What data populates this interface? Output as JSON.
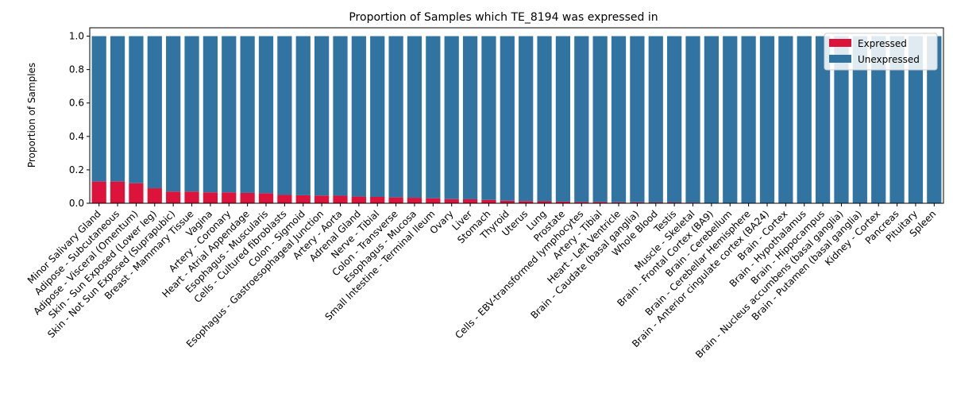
{
  "chart_data": {
    "type": "bar",
    "stacked": true,
    "title": "Proportion of Samples which TE_8194 was expressed in",
    "xlabel": "",
    "ylabel": "Proportion of Samples",
    "ylim": [
      0,
      1.05
    ],
    "yticks": [
      "0.0",
      "0.2",
      "0.4",
      "0.6",
      "0.8",
      "1.0"
    ],
    "legend_position": "top-right",
    "grid": false,
    "colors": {
      "Expressed": "#dc143c",
      "Unexpressed": "#3274a1"
    },
    "categories": [
      "Minor Salivary Gland",
      "Adipose - Subcutaneous",
      "Adipose - Visceral (Omentum)",
      "Skin - Sun Exposed (Lower leg)",
      "Skin - Not Sun Exposed (Suprapubic)",
      "Breast - Mammary Tissue",
      "Vagina",
      "Artery - Coronary",
      "Heart - Atrial Appendage",
      "Esophagus - Muscularis",
      "Cells - Cultured fibroblasts",
      "Colon - Sigmoid",
      "Esophagus - Gastroesophageal Junction",
      "Artery - Aorta",
      "Adrenal Gland",
      "Nerve - Tibial",
      "Colon - Transverse",
      "Esophagus - Mucosa",
      "Small Intestine - Terminal Ileum",
      "Ovary",
      "Liver",
      "Stomach",
      "Thyroid",
      "Uterus",
      "Lung",
      "Prostate",
      "Cells - EBV-transformed lymphocytes",
      "Artery - Tibial",
      "Heart - Left Ventricle",
      "Brain - Caudate (basal ganglia)",
      "Whole Blood",
      "Testis",
      "Muscle - Skeletal",
      "Brain - Frontal Cortex (BA9)",
      "Brain - Cerebellum",
      "Brain - Cerebellar Hemisphere",
      "Brain - Anterior cingulate cortex (BA24)",
      "Brain - Cortex",
      "Brain - Hypothalamus",
      "Brain - Hippocampus",
      "Brain - Nucleus accumbens (basal ganglia)",
      "Brain - Putamen (basal ganglia)",
      "Kidney - Cortex",
      "Pancreas",
      "Pituitary",
      "Spleen"
    ],
    "series": [
      {
        "name": "Expressed",
        "values": [
          0.13,
          0.13,
          0.12,
          0.09,
          0.07,
          0.07,
          0.065,
          0.065,
          0.062,
          0.06,
          0.05,
          0.048,
          0.046,
          0.045,
          0.04,
          0.038,
          0.035,
          0.033,
          0.03,
          0.025,
          0.024,
          0.02,
          0.015,
          0.013,
          0.012,
          0.01,
          0.008,
          0.008,
          0.006,
          0.006,
          0.005,
          0.005,
          0.004,
          0,
          0,
          0,
          0,
          0,
          0,
          0,
          0,
          0,
          0,
          0,
          0,
          0
        ]
      },
      {
        "name": "Unexpressed",
        "values": [
          0.87,
          0.87,
          0.88,
          0.91,
          0.93,
          0.93,
          0.935,
          0.935,
          0.938,
          0.94,
          0.95,
          0.952,
          0.954,
          0.955,
          0.96,
          0.962,
          0.965,
          0.967,
          0.97,
          0.975,
          0.976,
          0.98,
          0.985,
          0.987,
          0.988,
          0.99,
          0.992,
          0.992,
          0.994,
          0.994,
          0.995,
          0.995,
          0.996,
          1,
          1,
          1,
          1,
          1,
          1,
          1,
          1,
          1,
          1,
          1,
          1,
          1
        ]
      }
    ]
  }
}
